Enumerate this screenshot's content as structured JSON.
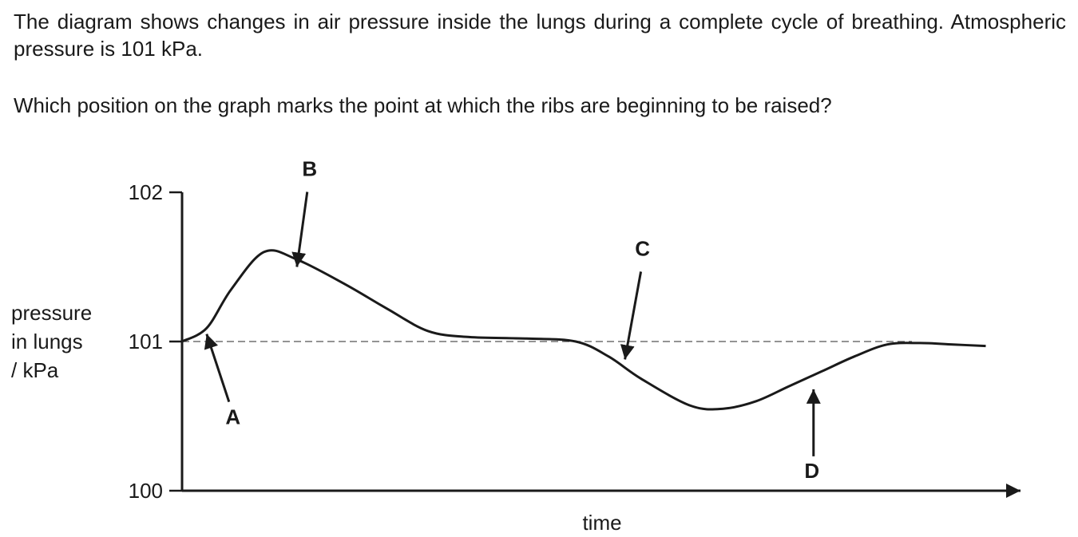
{
  "question": {
    "intro": "The diagram shows changes in air pressure inside the lungs during a complete cycle of breathing. Atmospheric pressure is 101 kPa.",
    "prompt": "Which position on the graph marks the point at which the ribs are beginning to be raised?"
  },
  "chart_data": {
    "type": "line",
    "title": "",
    "xlabel": "time",
    "ylabel_lines": [
      "pressure",
      "in lungs",
      "/ kPa"
    ],
    "ylim": [
      100,
      102
    ],
    "xlim": [
      0,
      1
    ],
    "yticks": [
      "100",
      "101",
      "102"
    ],
    "reference_line": {
      "y": 101,
      "style": "dashed",
      "x_end": 0.89
    },
    "series": [
      {
        "x": [
          0,
          0.03,
          0.06,
          0.1,
          0.14,
          0.2,
          0.25,
          0.3,
          0.35,
          0.42,
          0.48,
          0.52,
          0.56,
          0.62,
          0.66,
          0.7,
          0.74,
          0.78,
          0.82,
          0.86,
          0.9,
          0.94,
          0.98
        ],
        "y": [
          101.0,
          101.09,
          101.35,
          101.6,
          101.55,
          101.38,
          101.22,
          101.07,
          101.03,
          101.02,
          101.0,
          100.9,
          100.75,
          100.57,
          100.55,
          100.6,
          100.7,
          100.8,
          100.9,
          100.98,
          100.99,
          100.98,
          100.97
        ]
      }
    ],
    "annotations": [
      {
        "label": "A",
        "x": 0.03,
        "y": 101.05,
        "arrow_from": "below"
      },
      {
        "label": "B",
        "x": 0.14,
        "y": 101.5,
        "arrow_from": "above"
      },
      {
        "label": "C",
        "x": 0.54,
        "y": 100.88,
        "arrow_from": "above"
      },
      {
        "label": "D",
        "x": 0.77,
        "y": 100.68,
        "arrow_from": "below"
      }
    ]
  }
}
